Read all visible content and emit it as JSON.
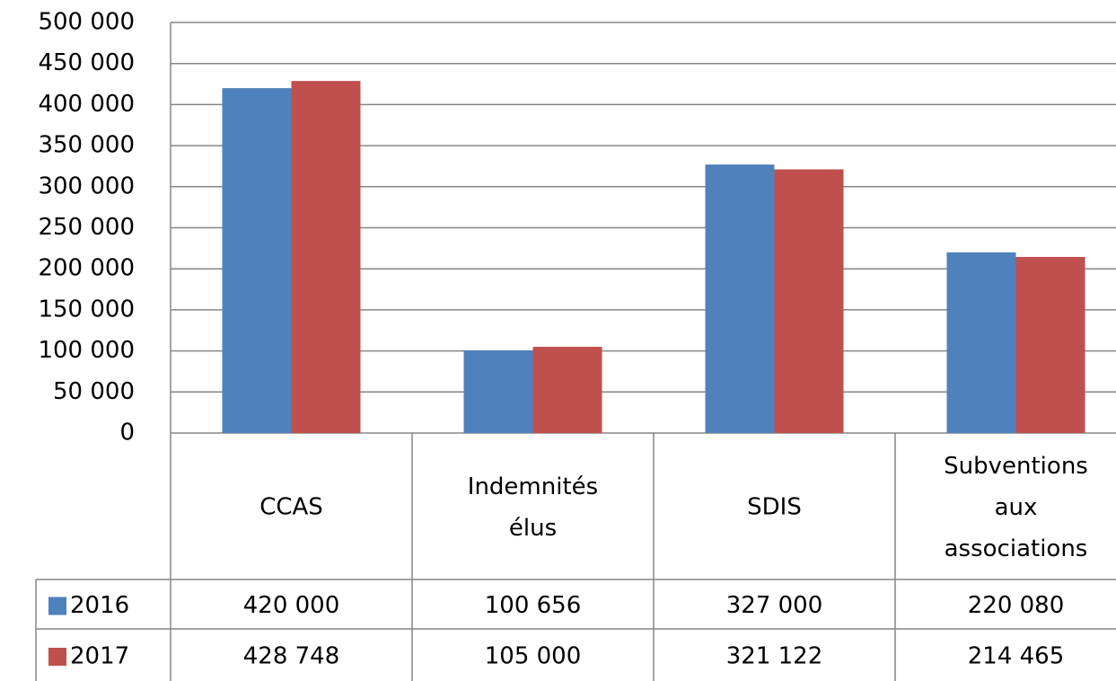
{
  "chart_data": {
    "type": "bar",
    "categories": [
      "CCAS",
      "Indemnités élus",
      "SDIS",
      "Subventions aux associations"
    ],
    "series": [
      {
        "name": "2016",
        "color": "#4f81bd",
        "values": [
          420000,
          100656,
          327000,
          220080
        ],
        "value_labels": [
          "420 000",
          "100 656",
          "327 000",
          "220 080"
        ]
      },
      {
        "name": "2017",
        "color": "#c0504d",
        "values": [
          428748,
          105000,
          321122,
          214465
        ],
        "value_labels": [
          "428 748",
          "105 000",
          "321 122",
          "214 465"
        ]
      }
    ],
    "ylim": [
      0,
      500000
    ],
    "yticks": [
      0,
      {
        "value": 50000,
        "label": "50 000"
      },
      {
        "value": 100000,
        "label": "100 000"
      },
      {
        "value": 150000,
        "label": "150 000"
      },
      {
        "value": 200000,
        "label": "200 000"
      },
      {
        "value": 250000,
        "label": "250 000"
      },
      {
        "value": 300000,
        "label": "300 000"
      },
      {
        "value": 350000,
        "label": "350 000"
      },
      {
        "value": 400000,
        "label": "400 000"
      },
      {
        "value": 450000,
        "label": "450 000"
      },
      {
        "value": 500000,
        "label": "500 000"
      }
    ],
    "grid": true
  }
}
